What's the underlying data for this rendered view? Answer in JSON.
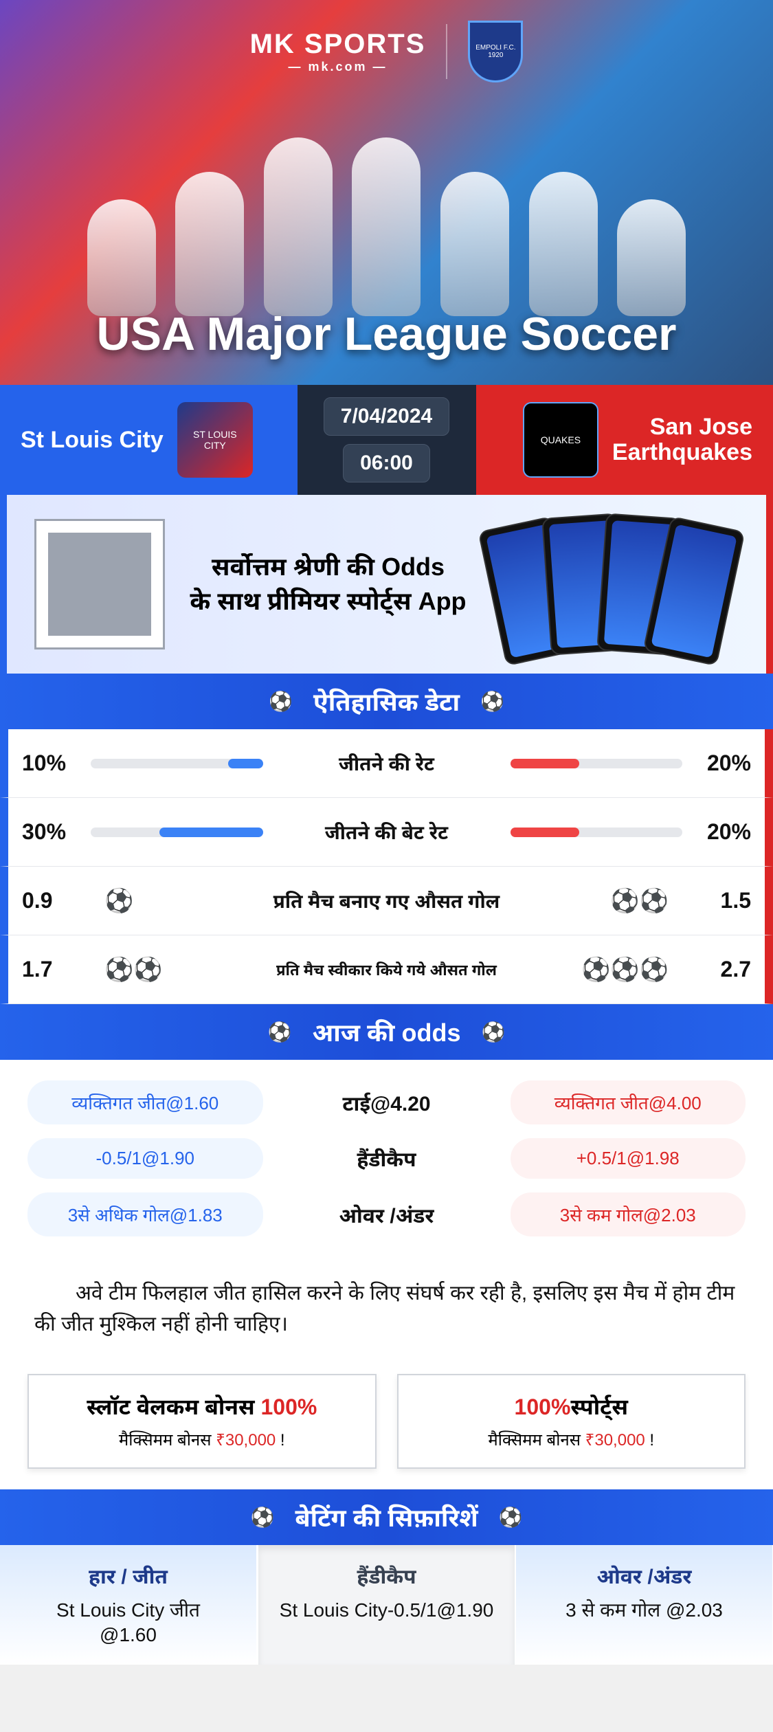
{
  "brand": {
    "line1": "MK SPORTS",
    "line2": "— mk.com —",
    "partner_badge": "EMPOLI F.C.\n1920"
  },
  "hero": {
    "title": "USA Major League Soccer"
  },
  "match": {
    "home_team": "St Louis City",
    "away_team": "San Jose\nEarthquakes",
    "date": "7/04/2024",
    "time": "06:00",
    "home_logo_label": "ST LOUIS\nCITY",
    "away_logo_label": "QUAKES"
  },
  "app_promo": {
    "line1": "सर्वोत्तम श्रेणी की Odds",
    "line2": "के साथ प्रीमियर स्पोर्ट्स App"
  },
  "sections": {
    "historical": "ऐतिहासिक डेटा",
    "odds": "आज की odds",
    "recommendations": "बेटिंग की सिफ़ारिशें"
  },
  "historical": {
    "rows": [
      {
        "left_val": "10%",
        "left_fill": 20,
        "label": "जीतने की रेट",
        "right_fill": 40,
        "right_val": "20%",
        "type": "bar"
      },
      {
        "left_val": "30%",
        "left_fill": 60,
        "label": "जीतने की बेट रेट",
        "right_fill": 40,
        "right_val": "20%",
        "type": "bar"
      },
      {
        "left_val": "0.9",
        "left_icons": 1,
        "label": "प्रति मैच बनाए गए औसत गोल",
        "right_icons": 2,
        "right_val": "1.5",
        "type": "icons",
        "small": false
      },
      {
        "left_val": "1.7",
        "left_icons": 2,
        "label": "प्रति मैच स्वीकार किये गये औसत गोल",
        "right_icons": 3,
        "right_val": "2.7",
        "type": "icons",
        "small": true
      }
    ]
  },
  "odds": {
    "rows": [
      {
        "left": "व्यक्तिगत जीत@1.60",
        "center": "टाई@4.20",
        "right": "व्यक्तिगत जीत@4.00"
      },
      {
        "left": "-0.5/1@1.90",
        "center": "हैंडीकैप",
        "right": "+0.5/1@1.98"
      },
      {
        "left": "3से अधिक गोल@1.83",
        "center": "ओवर /अंडर",
        "right": "3से कम गोल@2.03"
      }
    ]
  },
  "analysis": "अवे टीम फिलहाल जीत हासिल करने के लिए संघर्ष कर रही है, इसलिए इस मैच में होम टीम की जीत मुश्किल नहीं होनी चाहिए।",
  "bonuses": [
    {
      "title_pre": "स्लॉट वेलकम बोनस ",
      "pct": "100%",
      "sub_pre": "मैक्सिमम बोनस ",
      "amt": "₹30,000",
      "sub_post": "   !"
    },
    {
      "title_pre": "",
      "pct": "100%",
      "title_post": "स्पोर्ट्स",
      "sub_pre": "मैक्सिमम बोनस  ",
      "amt": "₹30,000",
      "sub_post": " !"
    }
  ],
  "recommendations": [
    {
      "head": "हार / जीत",
      "l1": "St Louis City जीत",
      "l2": "@1.60"
    },
    {
      "head": "हैंडीकैप",
      "l1": "St Louis City-0.5/1@1.90",
      "l2": ""
    },
    {
      "head": "ओवर /अंडर",
      "l1": "3 से कम गोल @2.03",
      "l2": ""
    }
  ],
  "colors": {
    "home": "#2563eb",
    "away": "#dc2626",
    "dark": "#1e293b"
  }
}
